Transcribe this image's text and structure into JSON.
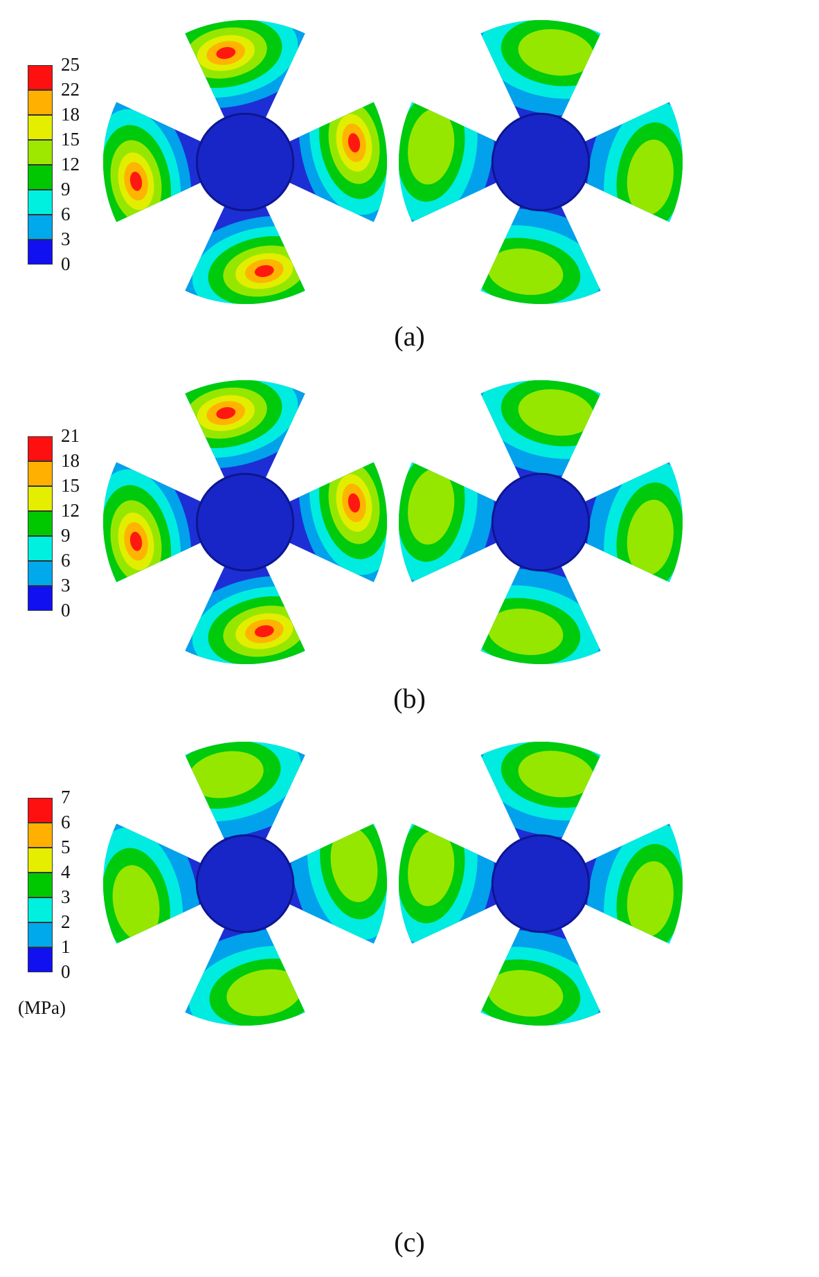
{
  "palette": [
    "#1010f0",
    "#00a8ec",
    "#00f0e0",
    "#00c800",
    "#9ee800",
    "#e6ee00",
    "#ffb000",
    "#ff1010"
  ],
  "blade_base_color": "#1d2fd4",
  "hub_color": "#1826c8",
  "panels": [
    {
      "id": "a",
      "caption": "(a)",
      "ticks": [
        "25",
        "22",
        "18",
        "15",
        "12",
        "9",
        "6",
        "3",
        "0"
      ]
    },
    {
      "id": "b",
      "caption": "(b)",
      "ticks": [
        "21",
        "18",
        "15",
        "12",
        "9",
        "6",
        "3",
        "0"
      ]
    },
    {
      "id": "c",
      "caption": "(c)",
      "ticks": [
        "7",
        "6",
        "5",
        "4",
        "3",
        "2",
        "1",
        "0"
      ]
    }
  ],
  "unit_label": "(MPa)"
}
